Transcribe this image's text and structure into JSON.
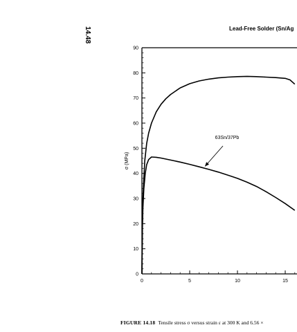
{
  "page": {
    "page_number": "14.48",
    "running_header": "Lead-Free Solder (Sn/Ag"
  },
  "caption": {
    "figure_label": "FIGURE 14.18",
    "text": "Tensile stress σ versus strain ε at 300 K and 6.56 ×"
  },
  "chart_data": {
    "type": "line",
    "title": "",
    "xlabel": "",
    "ylabel": "σ  (MPa)",
    "xlim": [
      0,
      16
    ],
    "ylim": [
      0,
      90
    ],
    "xticks": [
      0,
      5,
      10,
      15
    ],
    "yticks": [
      0,
      10,
      20,
      30,
      40,
      50,
      60,
      70,
      80,
      90
    ],
    "grid": false,
    "series": [
      {
        "x": [
          0,
          0.05,
          0.1,
          0.2,
          0.3,
          0.5,
          0.7,
          1,
          1.5,
          2,
          2.5,
          3,
          4,
          5,
          6,
          7,
          8,
          9,
          10,
          11,
          12,
          13,
          14,
          15,
          15.5,
          16
        ],
        "y": [
          0,
          22,
          30,
          38,
          45,
          52,
          56,
          60,
          64.5,
          67.5,
          69.7,
          71.4,
          74,
          75.7,
          76.8,
          77.5,
          78,
          78.3,
          78.5,
          78.6,
          78.5,
          78.3,
          78.1,
          77.8,
          77.2,
          75.5
        ]
      },
      {
        "name": "63Sn/37Pb",
        "x": [
          0,
          0.05,
          0.1,
          0.2,
          0.35,
          0.5,
          0.7,
          1,
          1.5,
          2,
          3,
          4,
          5,
          6,
          7,
          8,
          9,
          10,
          11,
          12,
          13,
          14,
          15,
          16
        ],
        "y": [
          0,
          18,
          26,
          34,
          40,
          43.5,
          45.5,
          46.5,
          46.4,
          46.1,
          45.3,
          44.5,
          43.6,
          42.6,
          41.6,
          40.5,
          39.3,
          38,
          36.5,
          34.8,
          32.7,
          30.4,
          28,
          25.3
        ]
      }
    ],
    "annotations": [
      {
        "text": "63Sn/37Pb",
        "arrow_to": [
          6.6,
          42.8
        ]
      }
    ]
  }
}
